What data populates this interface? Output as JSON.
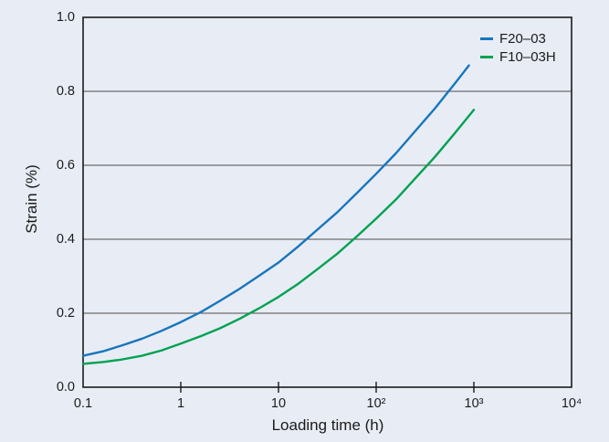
{
  "page": {
    "background": "#e8ecf5"
  },
  "chart_data": {
    "type": "line",
    "title": "",
    "xlabel": "Loading time (h)",
    "ylabel": "Strain (%)",
    "x_scale": "log",
    "x_range": [
      0.1,
      10000
    ],
    "y_range": [
      0.0,
      1.0
    ],
    "x_tick_labels": [
      "0.1",
      "1",
      "10",
      "10²",
      "10³",
      "10⁴"
    ],
    "x_tick_values": [
      0.1,
      1,
      10,
      100,
      1000,
      10000
    ],
    "y_tick_labels": [
      "1.0",
      "0.8",
      "0.6",
      "0.4",
      "0.2",
      "0.0"
    ],
    "y_tick_values": [
      1.0,
      0.8,
      0.6,
      0.4,
      0.2,
      0.0
    ],
    "gridlines_y": [
      0.2,
      0.4,
      0.6,
      0.8
    ],
    "inner_ticks_x": [
      1,
      10,
      100,
      1000
    ],
    "grid_on": true,
    "legend_position": "top-right-inside",
    "axis_color": "#1a1a1a",
    "grid_color": "#4b4b4b",
    "series": [
      {
        "name": "F20–03",
        "color": "#1776bc",
        "points": [
          [
            0.1,
            0.085
          ],
          [
            0.16,
            0.097
          ],
          [
            0.25,
            0.113
          ],
          [
            0.4,
            0.131
          ],
          [
            0.63,
            0.152
          ],
          [
            1,
            0.176
          ],
          [
            1.6,
            0.203
          ],
          [
            2.5,
            0.233
          ],
          [
            4,
            0.266
          ],
          [
            6.3,
            0.301
          ],
          [
            10,
            0.337
          ],
          [
            16,
            0.381
          ],
          [
            25,
            0.426
          ],
          [
            40,
            0.473
          ],
          [
            63,
            0.524
          ],
          [
            100,
            0.577
          ],
          [
            160,
            0.633
          ],
          [
            250,
            0.692
          ],
          [
            400,
            0.754
          ],
          [
            630,
            0.819
          ],
          [
            890,
            0.87
          ]
        ]
      },
      {
        "name": "F10–03H",
        "color": "#00a251",
        "points": [
          [
            0.1,
            0.063
          ],
          [
            0.16,
            0.068
          ],
          [
            0.25,
            0.075
          ],
          [
            0.4,
            0.085
          ],
          [
            0.63,
            0.099
          ],
          [
            1,
            0.118
          ],
          [
            1.6,
            0.138
          ],
          [
            2.5,
            0.159
          ],
          [
            4,
            0.185
          ],
          [
            6.3,
            0.213
          ],
          [
            10,
            0.244
          ],
          [
            16,
            0.28
          ],
          [
            25,
            0.319
          ],
          [
            40,
            0.361
          ],
          [
            63,
            0.407
          ],
          [
            100,
            0.456
          ],
          [
            160,
            0.508
          ],
          [
            250,
            0.564
          ],
          [
            400,
            0.623
          ],
          [
            630,
            0.685
          ],
          [
            1000,
            0.75
          ]
        ]
      }
    ]
  }
}
